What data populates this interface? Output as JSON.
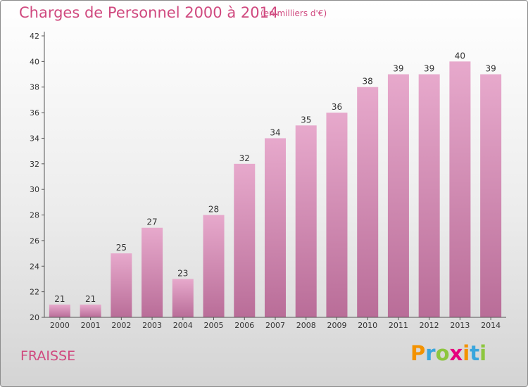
{
  "header": {
    "title": "Charges de Personnel 2000 à 2014",
    "unit": "(en milliers d'€)"
  },
  "commune": "FRAISSE",
  "logo": {
    "letters": [
      "P",
      "r",
      "o",
      "x",
      "i",
      "t",
      "i"
    ],
    "colors": [
      "#f39200",
      "#3aa6dd",
      "#8dc63f",
      "#e6007e",
      "#f39200",
      "#3aa6dd",
      "#8dc63f"
    ]
  },
  "colors": {
    "bar_top": "#e7a9cc",
    "bar_bottom": "#b96d98",
    "title": "#d0497f"
  },
  "chart_data": {
    "type": "bar",
    "categories": [
      "2000",
      "2001",
      "2002",
      "2003",
      "2004",
      "2005",
      "2006",
      "2007",
      "2008",
      "2009",
      "2010",
      "2011",
      "2012",
      "2013",
      "2014"
    ],
    "values": [
      21,
      21,
      25,
      27,
      23,
      28,
      32,
      34,
      35,
      36,
      38,
      39,
      39,
      40,
      39
    ],
    "ylim": [
      20,
      42
    ],
    "yticks": [
      20,
      22,
      24,
      26,
      28,
      30,
      32,
      34,
      36,
      38,
      40,
      42
    ],
    "grid": false
  }
}
